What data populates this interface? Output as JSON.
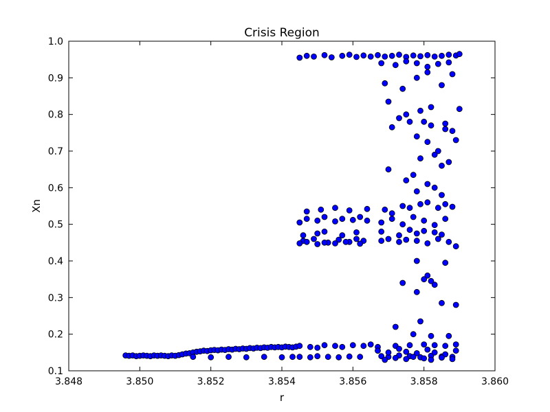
{
  "chart_data": {
    "type": "scatter",
    "title": "Crisis Region",
    "xlabel": "r",
    "ylabel": "Xn",
    "xlim": [
      3.848,
      3.86
    ],
    "ylim": [
      0.1,
      1.0
    ],
    "x_ticks": [
      "3.848",
      "3.850",
      "3.852",
      "3.854",
      "3.856",
      "3.858",
      "3.860"
    ],
    "y_ticks": [
      "0.1",
      "0.2",
      "0.3",
      "0.4",
      "0.5",
      "0.6",
      "0.7",
      "0.8",
      "0.9",
      "1.0"
    ],
    "grid": false,
    "legend": "none",
    "marker_color": "#0000ff",
    "marker_edge": "#000000",
    "series": [
      {
        "x": [
          3.8496,
          3.8497,
          3.8498,
          3.8499,
          3.85,
          3.8501,
          3.8502,
          3.8503,
          3.8504,
          3.8505,
          3.8506,
          3.8507,
          3.8508,
          3.8509,
          3.851,
          3.8511,
          3.8512,
          3.8513,
          3.8514,
          3.8515,
          3.8516,
          3.8517,
          3.8518,
          3.8519,
          3.852,
          3.8521,
          3.8522,
          3.8523,
          3.8524,
          3.8525,
          3.8526,
          3.8527,
          3.8528,
          3.8529,
          3.853,
          3.8531,
          3.8532,
          3.8533,
          3.8534,
          3.8535,
          3.8536,
          3.8537,
          3.8538,
          3.8539,
          3.854,
          3.8541,
          3.8542,
          3.8543,
          3.8544,
          3.8515,
          3.852,
          3.8525,
          3.853,
          3.8535,
          3.854,
          3.8543,
          3.8545,
          3.8548,
          3.855,
          3.8552,
          3.8555,
          3.8557,
          3.856,
          3.8563,
          3.8565,
          3.8545,
          3.8548,
          3.855,
          3.8553,
          3.8556,
          3.8559,
          3.8562,
          3.8545,
          3.8547,
          3.8549,
          3.8552,
          3.8554,
          3.8557,
          3.8559,
          3.8561,
          3.8563,
          3.8565,
          3.8545,
          3.8547,
          3.855,
          3.8552,
          3.8555,
          3.8557,
          3.856,
          3.8562,
          3.8564,
          3.8546,
          3.8549,
          3.8553,
          3.8556,
          3.8559,
          3.8561,
          3.8563,
          3.8546,
          3.855,
          3.8552,
          3.8557,
          3.8561,
          3.8547,
          3.8551,
          3.8555,
          3.8559,
          3.8564,
          3.8545,
          3.8547,
          3.855,
          3.8552,
          3.8555,
          3.8558,
          3.8562,
          3.8567,
          3.8569,
          3.8571,
          3.8573,
          3.8575,
          3.8577,
          3.8579,
          3.8581,
          3.8583,
          3.8585,
          3.8587,
          3.8589,
          3.8568,
          3.8572,
          3.8575,
          3.8578,
          3.8581,
          3.8584,
          3.8587,
          3.8568,
          3.857,
          3.8573,
          3.8576,
          3.8579,
          3.8582,
          3.8585,
          3.8588,
          3.8567,
          3.8572,
          3.8576,
          3.858,
          3.8583,
          3.8586,
          3.8589,
          3.8568,
          3.857,
          3.8573,
          3.8575,
          3.8578,
          3.8581,
          3.8584,
          3.8587,
          3.8589,
          3.8568,
          3.8571,
          3.8574,
          3.8577,
          3.858,
          3.8583,
          3.8586,
          3.8569,
          3.8571,
          3.8574,
          3.8576,
          3.8579,
          3.8581,
          3.8584,
          3.8586,
          3.8588,
          3.8567,
          3.857,
          3.8573,
          3.8575,
          3.8578,
          3.8581,
          3.8583,
          3.8586,
          3.8589,
          3.8569,
          3.8572,
          3.8575,
          3.8577,
          3.858,
          3.8582,
          3.8585,
          3.8588,
          3.8568,
          3.8573,
          3.8576,
          3.8578,
          3.858,
          3.8583,
          3.8585,
          3.8575,
          3.8577,
          3.8578,
          3.8579,
          3.8581,
          3.8583,
          3.8585,
          3.857,
          3.8571,
          3.8573,
          3.8575,
          3.8578,
          3.858,
          3.8582,
          3.8569,
          3.8574,
          3.8578,
          3.8581,
          3.8585,
          3.8588,
          3.857,
          3.8576,
          3.8579,
          3.8582,
          3.8584,
          3.8586,
          3.8581,
          3.8583,
          3.8585,
          3.8587,
          3.8589,
          3.8578,
          3.8581,
          3.8583,
          3.8586,
          3.8589,
          3.8572,
          3.8577,
          3.8579,
          3.8582,
          3.8587,
          3.8574,
          3.8578,
          3.858,
          3.8582,
          3.8585,
          3.8586,
          3.8588,
          3.859,
          3.859
        ],
        "y": [
          0.142,
          0.141,
          0.142,
          0.14,
          0.141,
          0.142,
          0.141,
          0.14,
          0.142,
          0.141,
          0.142,
          0.141,
          0.14,
          0.142,
          0.141,
          0.143,
          0.145,
          0.147,
          0.148,
          0.15,
          0.152,
          0.153,
          0.155,
          0.154,
          0.156,
          0.157,
          0.156,
          0.158,
          0.157,
          0.159,
          0.158,
          0.16,
          0.159,
          0.161,
          0.16,
          0.162,
          0.161,
          0.163,
          0.162,
          0.164,
          0.163,
          0.165,
          0.164,
          0.165,
          0.164,
          0.166,
          0.165,
          0.164,
          0.166,
          0.138,
          0.137,
          0.138,
          0.137,
          0.138,
          0.137,
          0.138,
          0.168,
          0.165,
          0.163,
          0.17,
          0.168,
          0.165,
          0.17,
          0.168,
          0.172,
          0.138,
          0.137,
          0.14,
          0.138,
          0.137,
          0.139,
          0.138,
          0.955,
          0.96,
          0.958,
          0.962,
          0.956,
          0.96,
          0.963,
          0.957,
          0.961,
          0.958,
          0.505,
          0.515,
          0.51,
          0.52,
          0.508,
          0.515,
          0.512,
          0.52,
          0.51,
          0.455,
          0.46,
          0.45,
          0.458,
          0.452,
          0.46,
          0.455,
          0.47,
          0.475,
          0.48,
          0.47,
          0.478,
          0.535,
          0.54,
          0.545,
          0.538,
          0.542,
          0.448,
          0.452,
          0.446,
          0.45,
          0.448,
          0.452,
          0.447,
          0.962,
          0.958,
          0.96,
          0.963,
          0.957,
          0.961,
          0.959,
          0.962,
          0.958,
          0.96,
          0.963,
          0.961,
          0.94,
          0.935,
          0.945,
          0.94,
          0.93,
          0.938,
          0.942,
          0.14,
          0.138,
          0.142,
          0.14,
          0.137,
          0.141,
          0.139,
          0.138,
          0.165,
          0.168,
          0.17,
          0.172,
          0.17,
          0.168,
          0.172,
          0.455,
          0.46,
          0.452,
          0.458,
          0.455,
          0.448,
          0.46,
          0.452,
          0.44,
          0.505,
          0.515,
          0.5,
          0.52,
          0.51,
          0.498,
          0.515,
          0.54,
          0.53,
          0.55,
          0.545,
          0.555,
          0.56,
          0.545,
          0.555,
          0.548,
          0.155,
          0.15,
          0.16,
          0.152,
          0.148,
          0.158,
          0.15,
          0.145,
          0.155,
          0.13,
          0.135,
          0.132,
          0.138,
          0.134,
          0.13,
          0.136,
          0.132,
          0.48,
          0.47,
          0.485,
          0.475,
          0.482,
          0.478,
          0.472,
          0.62,
          0.635,
          0.59,
          0.68,
          0.61,
          0.6,
          0.58,
          0.835,
          0.765,
          0.79,
          0.8,
          0.74,
          0.78,
          0.82,
          0.885,
          0.87,
          0.9,
          0.915,
          0.88,
          0.91,
          0.65,
          0.78,
          0.81,
          0.77,
          0.7,
          0.76,
          0.725,
          0.69,
          0.66,
          0.67,
          0.73,
          0.4,
          0.36,
          0.335,
          0.395,
          0.28,
          0.22,
          0.2,
          0.235,
          0.195,
          0.195,
          0.34,
          0.315,
          0.35,
          0.345,
          0.285,
          0.775,
          0.755,
          0.965,
          0.815
        ]
      }
    ]
  }
}
